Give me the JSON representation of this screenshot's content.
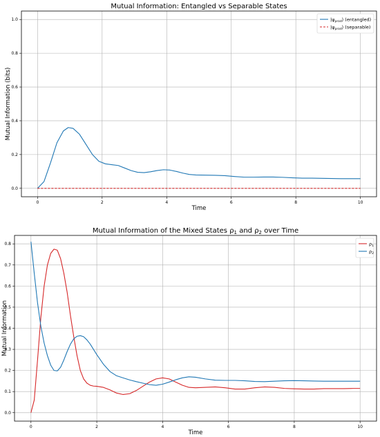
{
  "chart_data": [
    {
      "type": "line",
      "title": "Mutual Information: Entangled vs Separable States",
      "xlabel": "Time",
      "ylabel": "Mutual Information (bits)",
      "xlim": [
        -0.5,
        10.5
      ],
      "ylim": [
        -0.05,
        1.05
      ],
      "xticks": [
        0,
        2,
        4,
        6,
        8,
        10
      ],
      "xtick_labels": [
        "0",
        "2",
        "4",
        "6",
        "8",
        "10"
      ],
      "yticks": [
        0.0,
        0.2,
        0.4,
        0.6,
        0.8,
        1.0
      ],
      "ytick_labels": [
        "0.0",
        "0.2",
        "0.4",
        "0.6",
        "0.8",
        "1.0"
      ],
      "grid": true,
      "legend_position": "top-right",
      "series": [
        {
          "name": "|ψ_{prod}⟩ (entangled)",
          "legend_main": "|ψ",
          "legend_sub": "prod",
          "legend_rest": "⟩ (entangled)",
          "color": "#1f77b4",
          "style": "solid",
          "x": [
            0,
            0.2,
            0.4,
            0.6,
            0.8,
            0.95,
            1.1,
            1.3,
            1.5,
            1.7,
            1.9,
            2.1,
            2.3,
            2.5,
            2.7,
            2.9,
            3.1,
            3.3,
            3.5,
            3.7,
            3.9,
            4.1,
            4.3,
            4.5,
            4.7,
            4.9,
            5.2,
            5.5,
            5.8,
            6.1,
            6.4,
            6.7,
            7.0,
            7.3,
            7.6,
            7.9,
            8.2,
            8.5,
            8.8,
            9.1,
            9.4,
            9.7,
            10.0
          ],
          "values": [
            0.0,
            0.04,
            0.15,
            0.27,
            0.34,
            0.36,
            0.355,
            0.32,
            0.26,
            0.2,
            0.16,
            0.145,
            0.14,
            0.135,
            0.12,
            0.105,
            0.095,
            0.093,
            0.098,
            0.105,
            0.11,
            0.108,
            0.1,
            0.09,
            0.082,
            0.079,
            0.078,
            0.077,
            0.075,
            0.07,
            0.066,
            0.066,
            0.067,
            0.067,
            0.065,
            0.062,
            0.06,
            0.06,
            0.059,
            0.058,
            0.057,
            0.057,
            0.057
          ]
        },
        {
          "name": "|ψ_{prod}⟩ (separable)",
          "legend_main": "|ψ",
          "legend_sub": "prod",
          "legend_rest": "⟩ (separable)",
          "color": "#d62728",
          "style": "dashed",
          "x": [
            0,
            10
          ],
          "values": [
            0.0,
            0.0
          ]
        }
      ]
    },
    {
      "type": "line",
      "title": "Mutual Information of the Mixed States ρ₁ and ρ₂ over Time",
      "title_parts": [
        "Mutual Information of the Mixed States ",
        "ρ",
        "1",
        " and ",
        "ρ",
        "2",
        " over Time"
      ],
      "xlabel": "Time",
      "ylabel": "Mutual Information",
      "xlim": [
        -0.5,
        10.5
      ],
      "ylim": [
        -0.04,
        0.84
      ],
      "xticks": [
        0,
        2,
        4,
        6,
        8,
        10
      ],
      "xtick_labels": [
        "0",
        "2",
        "4",
        "6",
        "8",
        "10"
      ],
      "yticks": [
        0.0,
        0.1,
        0.2,
        0.3,
        0.4,
        0.5,
        0.6,
        0.7,
        0.8
      ],
      "ytick_labels": [
        "0.0",
        "0.1",
        "0.2",
        "0.3",
        "0.4",
        "0.5",
        "0.6",
        "0.7",
        "0.8"
      ],
      "grid": true,
      "legend_position": "top-right",
      "series": [
        {
          "name": "ρ₁",
          "legend_main": "ρ",
          "legend_sub": "1",
          "legend_rest": "",
          "color": "#d62728",
          "style": "solid",
          "x": [
            0,
            0.1,
            0.2,
            0.3,
            0.4,
            0.5,
            0.6,
            0.7,
            0.8,
            0.9,
            1.0,
            1.1,
            1.2,
            1.3,
            1.4,
            1.5,
            1.6,
            1.7,
            1.8,
            1.9,
            2.0,
            2.2,
            2.4,
            2.6,
            2.8,
            3.0,
            3.2,
            3.4,
            3.6,
            3.8,
            4.0,
            4.2,
            4.4,
            4.6,
            4.8,
            5.0,
            5.3,
            5.6,
            5.9,
            6.2,
            6.5,
            6.8,
            7.1,
            7.4,
            7.7,
            8.0,
            8.3,
            8.6,
            8.9,
            9.2,
            9.5,
            9.8,
            10.0
          ],
          "values": [
            0.0,
            0.06,
            0.25,
            0.45,
            0.6,
            0.7,
            0.755,
            0.775,
            0.77,
            0.73,
            0.66,
            0.57,
            0.46,
            0.36,
            0.27,
            0.2,
            0.16,
            0.14,
            0.13,
            0.126,
            0.125,
            0.12,
            0.108,
            0.093,
            0.086,
            0.09,
            0.105,
            0.125,
            0.145,
            0.16,
            0.165,
            0.16,
            0.145,
            0.13,
            0.12,
            0.118,
            0.12,
            0.122,
            0.118,
            0.112,
            0.112,
            0.118,
            0.122,
            0.12,
            0.115,
            0.113,
            0.112,
            0.112,
            0.114,
            0.114,
            0.114,
            0.115,
            0.115
          ]
        },
        {
          "name": "ρ₂",
          "legend_main": "ρ",
          "legend_sub": "2",
          "legend_rest": "",
          "color": "#1f77b4",
          "style": "solid",
          "x": [
            0,
            0.1,
            0.2,
            0.3,
            0.4,
            0.5,
            0.6,
            0.7,
            0.8,
            0.9,
            1.0,
            1.1,
            1.2,
            1.3,
            1.4,
            1.5,
            1.6,
            1.7,
            1.8,
            1.9,
            2.0,
            2.2,
            2.4,
            2.6,
            2.8,
            3.0,
            3.2,
            3.4,
            3.6,
            3.8,
            4.0,
            4.2,
            4.4,
            4.6,
            4.8,
            5.0,
            5.3,
            5.6,
            5.9,
            6.2,
            6.5,
            6.8,
            7.1,
            7.4,
            7.7,
            8.0,
            8.3,
            8.6,
            8.9,
            9.2,
            9.5,
            9.8,
            10.0
          ],
          "values": [
            0.81,
            0.66,
            0.52,
            0.41,
            0.33,
            0.27,
            0.225,
            0.2,
            0.198,
            0.215,
            0.25,
            0.29,
            0.325,
            0.35,
            0.362,
            0.365,
            0.36,
            0.345,
            0.325,
            0.3,
            0.275,
            0.23,
            0.195,
            0.175,
            0.165,
            0.155,
            0.147,
            0.14,
            0.133,
            0.13,
            0.135,
            0.145,
            0.156,
            0.165,
            0.17,
            0.168,
            0.16,
            0.154,
            0.153,
            0.153,
            0.151,
            0.148,
            0.147,
            0.149,
            0.151,
            0.152,
            0.151,
            0.15,
            0.149,
            0.149,
            0.149,
            0.149,
            0.149
          ]
        }
      ]
    }
  ]
}
